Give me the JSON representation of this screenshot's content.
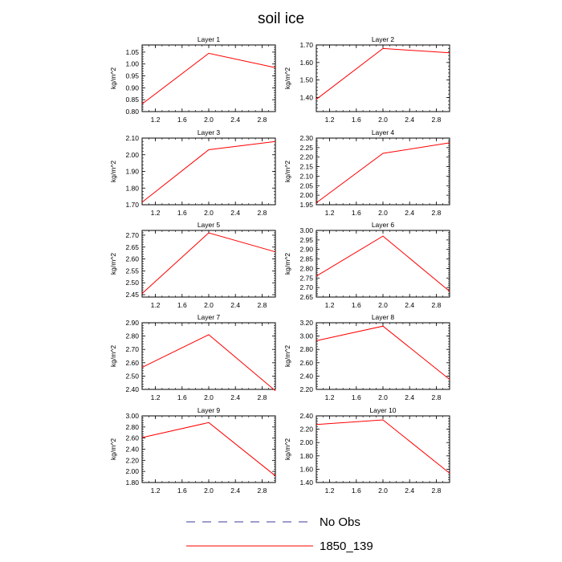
{
  "figure": {
    "title": "soil ice",
    "ylabel": "kg/m^2",
    "line_color": "#ff0000",
    "obs_color": "#3b3b9b"
  },
  "legend": {
    "entries": [
      {
        "label": "No Obs",
        "style": "dashed",
        "color": "#3b3b9b"
      },
      {
        "label": "1850_139",
        "style": "solid",
        "color": "#ff0000"
      }
    ]
  },
  "chart_data": [
    {
      "type": "line",
      "title": "Layer 1",
      "ylabel": "kg/m^2",
      "xlim": [
        1.0,
        3.0
      ],
      "x_ticks": [
        "1.2",
        "1.6",
        "2.0",
        "2.4",
        "2.8"
      ],
      "ylim": [
        0.8,
        1.08
      ],
      "y_ticks": [
        "0.80",
        "0.85",
        "0.90",
        "0.95",
        "1.00",
        "1.05"
      ],
      "series": [
        {
          "name": "1850_139",
          "x": [
            1,
            2,
            3
          ],
          "values": [
            0.832,
            1.045,
            0.985
          ]
        }
      ]
    },
    {
      "type": "line",
      "title": "Layer 2",
      "ylabel": "kg/m^2",
      "xlim": [
        1.0,
        3.0
      ],
      "x_ticks": [
        "1.2",
        "1.6",
        "2.0",
        "2.4",
        "2.8"
      ],
      "ylim": [
        1.32,
        1.7
      ],
      "y_ticks": [
        "1.40",
        "1.50",
        "1.60",
        "1.70"
      ],
      "series": [
        {
          "name": "1850_139",
          "x": [
            1,
            2,
            3
          ],
          "values": [
            1.39,
            1.68,
            1.655
          ]
        }
      ]
    },
    {
      "type": "line",
      "title": "Layer 3",
      "ylabel": "kg/m^2",
      "xlim": [
        1.0,
        3.0
      ],
      "x_ticks": [
        "1.2",
        "1.6",
        "2.0",
        "2.4",
        "2.8"
      ],
      "ylim": [
        1.7,
        2.1
      ],
      "y_ticks": [
        "1.70",
        "1.80",
        "1.90",
        "2.00",
        "2.10"
      ],
      "series": [
        {
          "name": "1850_139",
          "x": [
            1,
            2,
            3
          ],
          "values": [
            1.715,
            2.03,
            2.08
          ]
        }
      ]
    },
    {
      "type": "line",
      "title": "Layer 4",
      "ylabel": "kg/m^2",
      "xlim": [
        1.0,
        3.0
      ],
      "x_ticks": [
        "1.2",
        "1.6",
        "2.0",
        "2.4",
        "2.8"
      ],
      "ylim": [
        1.95,
        2.3
      ],
      "y_ticks": [
        "1.95",
        "2.00",
        "2.05",
        "2.10",
        "2.15",
        "2.20",
        "2.25",
        "2.30"
      ],
      "series": [
        {
          "name": "1850_139",
          "x": [
            1,
            2,
            3
          ],
          "values": [
            1.96,
            2.22,
            2.275
          ]
        }
      ]
    },
    {
      "type": "line",
      "title": "Layer 5",
      "ylabel": "kg/m^2",
      "xlim": [
        1.0,
        3.0
      ],
      "x_ticks": [
        "1.2",
        "1.6",
        "2.0",
        "2.4",
        "2.8"
      ],
      "ylim": [
        2.44,
        2.72
      ],
      "y_ticks": [
        "2.45",
        "2.50",
        "2.55",
        "2.60",
        "2.65",
        "2.70"
      ],
      "series": [
        {
          "name": "1850_139",
          "x": [
            1,
            2,
            3
          ],
          "values": [
            2.455,
            2.71,
            2.63
          ]
        }
      ]
    },
    {
      "type": "line",
      "title": "Layer 6",
      "ylabel": "kg/m^2",
      "xlim": [
        1.0,
        3.0
      ],
      "x_ticks": [
        "1.2",
        "1.6",
        "2.0",
        "2.4",
        "2.8"
      ],
      "ylim": [
        2.65,
        3.0
      ],
      "y_ticks": [
        "2.65",
        "2.70",
        "2.75",
        "2.80",
        "2.85",
        "2.90",
        "2.95",
        "3.00"
      ],
      "series": [
        {
          "name": "1850_139",
          "x": [
            1,
            2,
            3
          ],
          "values": [
            2.76,
            2.97,
            2.68
          ]
        }
      ]
    },
    {
      "type": "line",
      "title": "Layer 7",
      "ylabel": "kg/m^2",
      "xlim": [
        1.0,
        3.0
      ],
      "x_ticks": [
        "1.2",
        "1.6",
        "2.0",
        "2.4",
        "2.8"
      ],
      "ylim": [
        2.4,
        2.9
      ],
      "y_ticks": [
        "2.40",
        "2.50",
        "2.60",
        "2.70",
        "2.80",
        "2.90"
      ],
      "series": [
        {
          "name": "1850_139",
          "x": [
            1,
            2,
            3
          ],
          "values": [
            2.565,
            2.81,
            2.39
          ]
        }
      ]
    },
    {
      "type": "line",
      "title": "Layer 8",
      "ylabel": "kg/m^2",
      "xlim": [
        1.0,
        3.0
      ],
      "x_ticks": [
        "1.2",
        "1.6",
        "2.0",
        "2.4",
        "2.8"
      ],
      "ylim": [
        2.2,
        3.2
      ],
      "y_ticks": [
        "2.20",
        "2.40",
        "2.60",
        "2.80",
        "3.00",
        "3.20"
      ],
      "series": [
        {
          "name": "1850_139",
          "x": [
            1,
            2,
            3
          ],
          "values": [
            2.93,
            3.15,
            2.35
          ]
        }
      ]
    },
    {
      "type": "line",
      "title": "Layer 9",
      "ylabel": "kg/m^2",
      "xlim": [
        1.0,
        3.0
      ],
      "x_ticks": [
        "1.2",
        "1.6",
        "2.0",
        "2.4",
        "2.8"
      ],
      "ylim": [
        1.8,
        3.0
      ],
      "y_ticks": [
        "1.80",
        "2.00",
        "2.20",
        "2.40",
        "2.60",
        "2.80",
        "3.00"
      ],
      "series": [
        {
          "name": "1850_139",
          "x": [
            1,
            2,
            3
          ],
          "values": [
            2.61,
            2.88,
            1.92
          ]
        }
      ]
    },
    {
      "type": "line",
      "title": "Layer 10",
      "ylabel": "kg/m^2",
      "xlim": [
        1.0,
        3.0
      ],
      "x_ticks": [
        "1.2",
        "1.6",
        "2.0",
        "2.4",
        "2.8"
      ],
      "ylim": [
        1.4,
        2.4
      ],
      "y_ticks": [
        "1.40",
        "1.60",
        "1.80",
        "2.00",
        "2.20",
        "2.40"
      ],
      "series": [
        {
          "name": "1850_139",
          "x": [
            1,
            2,
            3
          ],
          "values": [
            2.27,
            2.34,
            1.54
          ]
        }
      ]
    }
  ]
}
